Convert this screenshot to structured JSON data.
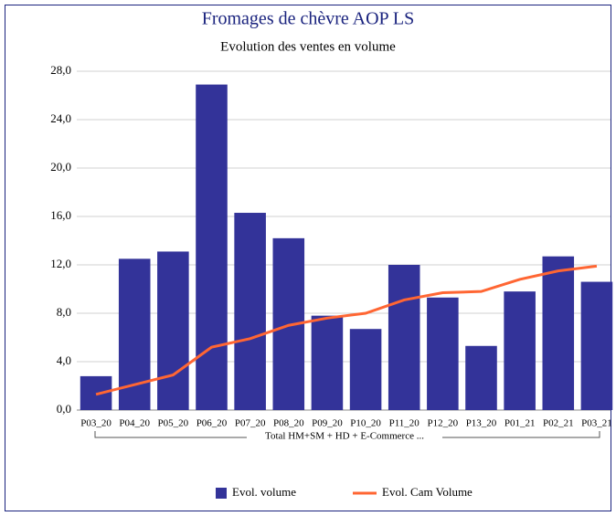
{
  "chart_data": {
    "type": "bar",
    "title": "Fromages de chèvre AOP LS",
    "subtitle": "Evolution des ventes en volume",
    "group_label": "Total HM+SM + HD + E-Commerce ...",
    "categories": [
      "P03_20",
      "P04_20",
      "P05_20",
      "P06_20",
      "P07_20",
      "P08_20",
      "P09_20",
      "P10_20",
      "P11_20",
      "P12_20",
      "P13_20",
      "P01_21",
      "P02_21",
      "P03_21"
    ],
    "series": [
      {
        "name": "Evol. volume",
        "type": "bar",
        "color": "#333399",
        "values": [
          2.8,
          12.5,
          13.1,
          26.9,
          16.3,
          14.2,
          7.8,
          6.7,
          12.0,
          9.3,
          5.3,
          9.8,
          12.7,
          10.6
        ]
      },
      {
        "name": "Evol. Cam Volume",
        "type": "line",
        "color": "#ff6633",
        "values": [
          1.3,
          2.1,
          2.9,
          5.2,
          5.9,
          7.0,
          7.6,
          8.0,
          9.1,
          9.7,
          9.8,
          10.8,
          11.5,
          11.9
        ]
      }
    ],
    "ylim": [
      0,
      28
    ],
    "yticks": [
      {
        "value": 0,
        "label": "0,0"
      },
      {
        "value": 4,
        "label": "4,0"
      },
      {
        "value": 8,
        "label": "8,0"
      },
      {
        "value": 12,
        "label": "12,0"
      },
      {
        "value": 16,
        "label": "16,0"
      },
      {
        "value": 20,
        "label": "20,0"
      },
      {
        "value": 24,
        "label": "24,0"
      },
      {
        "value": 28,
        "label": "28,0"
      }
    ],
    "grid": true,
    "legend": "bottom"
  }
}
